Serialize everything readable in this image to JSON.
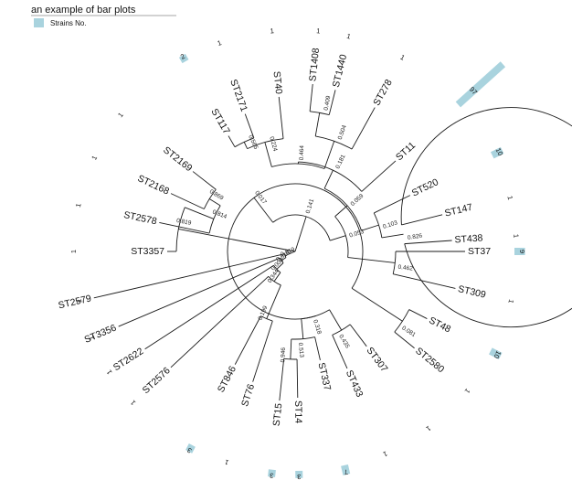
{
  "legend": {
    "title": "an example of bar plots",
    "entry_label": "Strains No.",
    "swatch_color": "#a9d3de"
  },
  "tree": {
    "leaves": [
      {
        "name": "ST3357",
        "count": 1
      },
      {
        "name": "ST2578",
        "count": 1
      },
      {
        "name": "ST2168",
        "count": 1
      },
      {
        "name": "ST2169",
        "count": 1
      },
      {
        "name": "ST117",
        "count": 2
      },
      {
        "name": "ST2171",
        "count": 1
      },
      {
        "name": "ST40",
        "count": 1
      },
      {
        "name": "ST1408",
        "count": 1
      },
      {
        "name": "ST1440",
        "count": 1
      },
      {
        "name": "ST278",
        "count": 1
      },
      {
        "name": "ST11",
        "count": 97
      },
      {
        "name": "ST520",
        "count": 10
      },
      {
        "name": "ST147",
        "count": 1
      },
      {
        "name": "ST438",
        "count": 1
      },
      {
        "name": "ST37",
        "count": 9
      },
      {
        "name": "ST309",
        "count": 1
      },
      {
        "name": "ST48",
        "count": 10
      },
      {
        "name": "ST2580",
        "count": 1
      },
      {
        "name": "ST307",
        "count": 1
      },
      {
        "name": "ST433",
        "count": 1
      },
      {
        "name": "ST337",
        "count": 7
      },
      {
        "name": "ST14",
        "count": 3
      },
      {
        "name": "ST15",
        "count": 3
      },
      {
        "name": "ST76",
        "count": 1
      },
      {
        "name": "ST846",
        "count": 3
      },
      {
        "name": "ST2576",
        "count": 1
      },
      {
        "name": "ST2622",
        "count": 1
      },
      {
        "name": "ST3356",
        "count": 1
      },
      {
        "name": "ST2579",
        "count": 1
      }
    ],
    "support_values": [
      "0.819",
      "0.779",
      "0.814",
      "0.869",
      "0.565",
      "0.224",
      "0.464",
      "0.409",
      "0.504",
      "0.181",
      "0.059",
      "0.103",
      "0.826",
      "0.053",
      "0.462",
      "0.141",
      "0.081",
      "0.017",
      "0.435",
      "0.318",
      "0.513",
      "0.946",
      "0.344",
      "0.199",
      "0.000",
      "0.819"
    ],
    "bar_scale_max": 97
  }
}
